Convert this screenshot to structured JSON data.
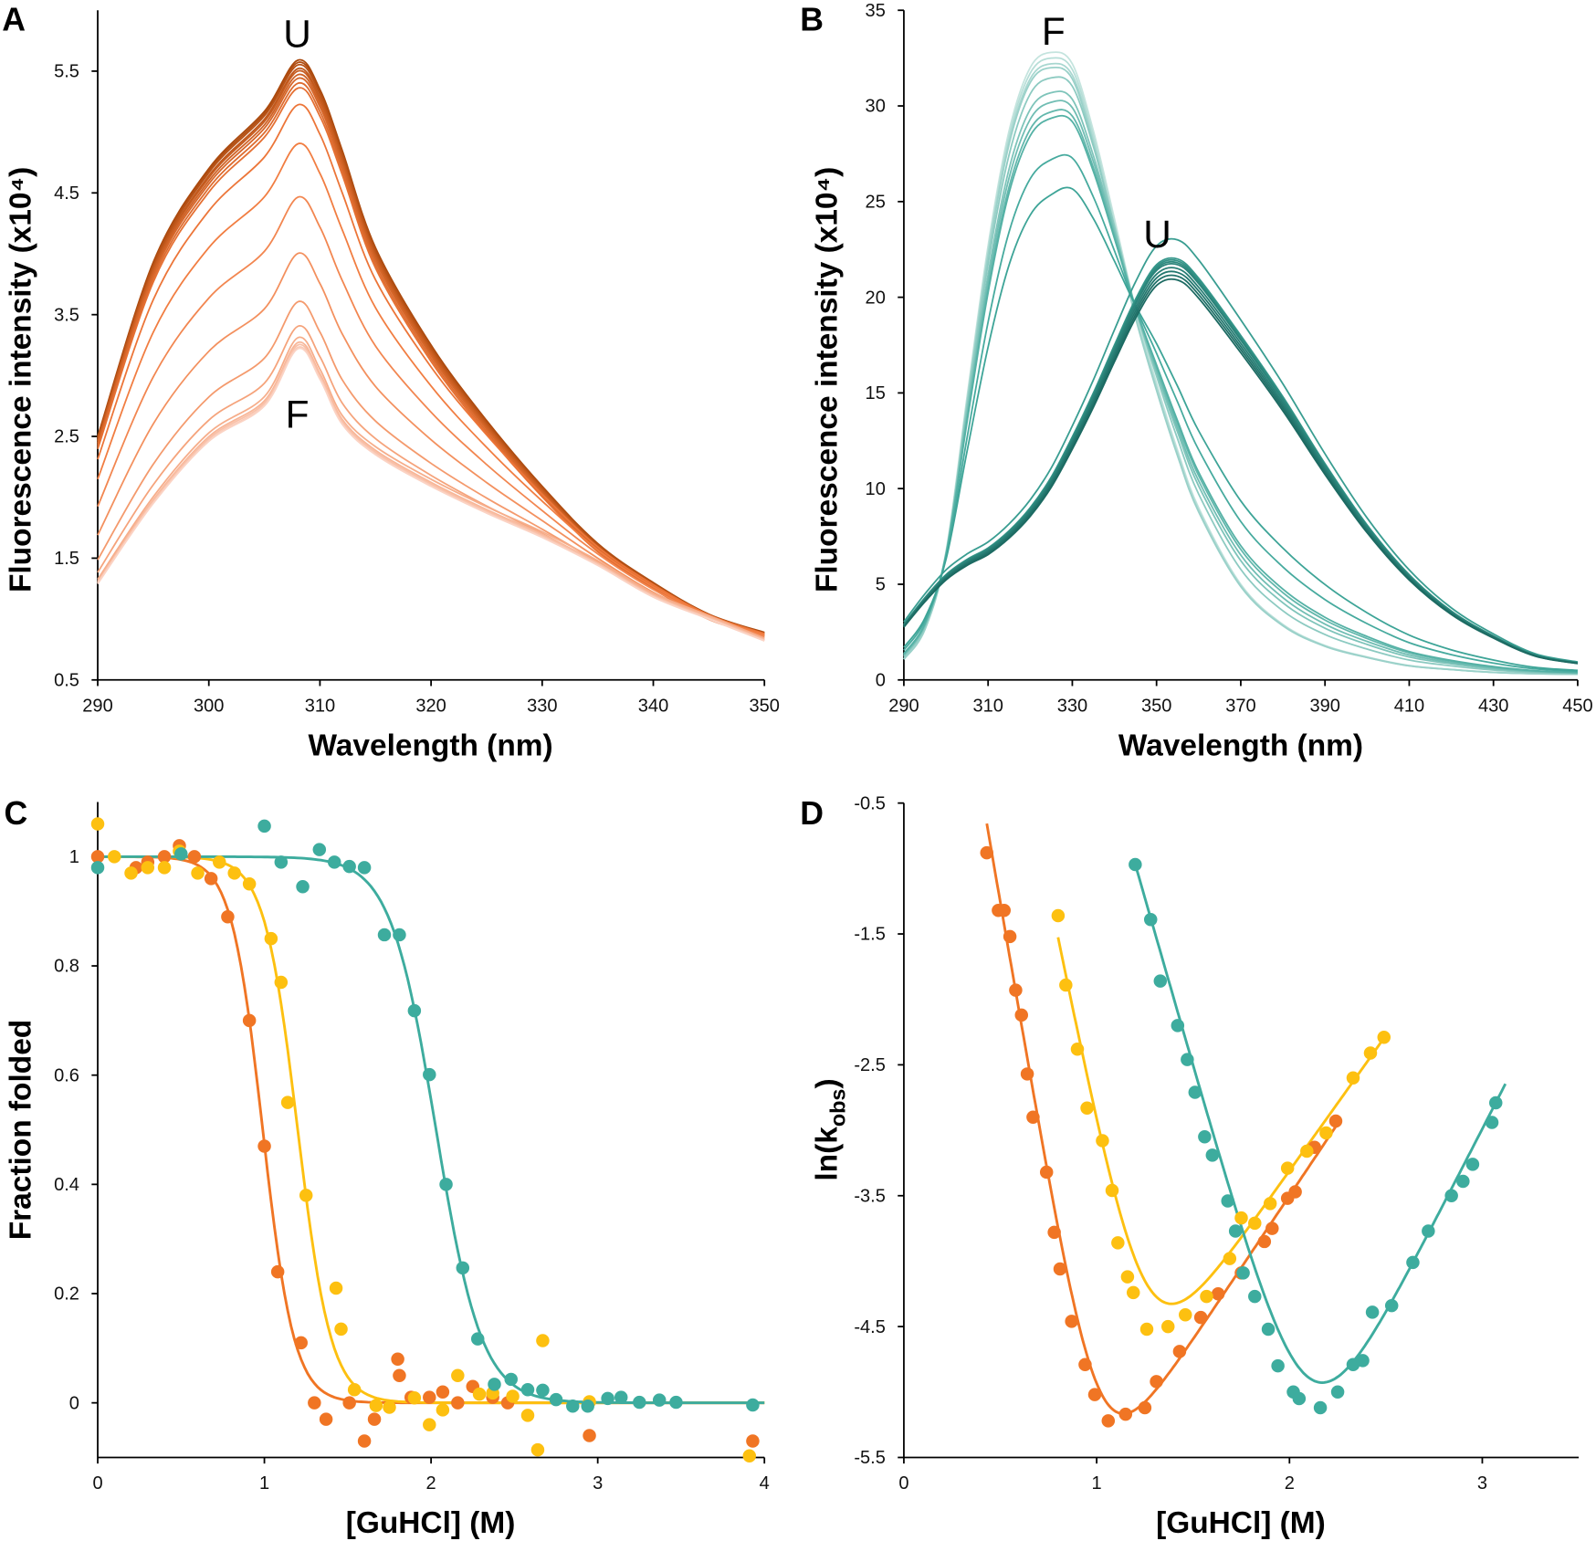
{
  "chart_data": [
    {
      "panel": "A",
      "type": "line",
      "xlabel": "Wavelength (nm)",
      "ylabel": "Fluorescence intensity  (x10⁴)",
      "xlim": [
        290,
        350
      ],
      "ylim": [
        0.5,
        6.0
      ],
      "xticks": [
        290,
        300,
        310,
        320,
        330,
        340,
        350
      ],
      "yticks": [
        0.5,
        1.5,
        2.5,
        3.5,
        4.5,
        5.5
      ],
      "grid": false,
      "annotations": [
        {
          "text": "U"
        },
        {
          "text": "F"
        }
      ],
      "wavelengths": [
        290,
        295,
        300,
        305,
        308,
        310,
        312,
        315,
        320,
        325,
        330,
        335,
        340,
        345,
        350
      ],
      "unfolded_spectrum": [
        2.5,
        3.93,
        4.7,
        5.17,
        5.59,
        5.35,
        4.85,
        4.05,
        3.25,
        2.63,
        2.09,
        1.62,
        1.3,
        1.04,
        0.89
      ],
      "folded_spectrum": [
        1.29,
        1.95,
        2.46,
        2.75,
        3.22,
        2.97,
        2.6,
        2.35,
        2.09,
        1.87,
        1.67,
        1.44,
        1.18,
        1.0,
        0.82
      ],
      "peak_intensities": [
        5.59,
        5.57,
        5.55,
        5.52,
        5.5,
        5.47,
        5.44,
        5.4,
        5.36,
        5.22,
        4.9,
        4.46,
        4.0,
        3.6,
        3.4,
        3.31,
        3.27,
        3.25,
        3.23,
        3.22
      ],
      "colors": [
        "#a9480c",
        "#f0783a",
        "#fbd3c4"
      ]
    },
    {
      "panel": "B",
      "type": "line",
      "xlabel": "Wavelength (nm)",
      "ylabel": "Fluorescence intensity  (x10⁴)",
      "xlim": [
        290,
        450
      ],
      "ylim": [
        0,
        35
      ],
      "xticks": [
        290,
        310,
        330,
        350,
        370,
        390,
        410,
        430,
        450
      ],
      "yticks": [
        0,
        5,
        10,
        15,
        20,
        25,
        30,
        35
      ],
      "grid": false,
      "annotations": [
        {
          "text": "F"
        },
        {
          "text": "U"
        }
      ],
      "wavelengths": [
        290,
        295,
        300,
        305,
        310,
        315,
        320,
        325,
        330,
        335,
        340,
        345,
        350,
        355,
        360,
        370,
        380,
        390,
        400,
        410,
        420,
        430,
        440,
        450
      ],
      "folded_spectrum": [
        1.1,
        2.7,
        6.7,
        14.8,
        22.7,
        28.7,
        32.0,
        32.8,
        32.2,
        28.7,
        24.1,
        19.4,
        15.5,
        12.0,
        9.0,
        5.0,
        2.9,
        1.8,
        1.2,
        0.75,
        0.55,
        0.4,
        0.33,
        0.3
      ],
      "unfolded_spectrum": [
        2.9,
        4.3,
        5.5,
        6.3,
        6.9,
        7.8,
        9.0,
        10.6,
        12.7,
        15.0,
        17.5,
        19.9,
        21.7,
        22.0,
        21.0,
        18.0,
        14.8,
        11.3,
        8.1,
        5.5,
        3.6,
        2.3,
        1.3,
        0.9
      ],
      "peak_intensities": [
        32.8,
        32.5,
        32.2,
        32.0,
        31.5,
        30.7,
        30.2,
        29.7,
        29.4,
        27.3,
        25.7,
        23.0,
        22.0,
        21.9,
        21.8,
        21.7,
        21.5,
        21.3,
        21.1,
        20.9
      ],
      "colors": [
        "#c4e4de",
        "#3fa79a",
        "#1c6a62"
      ]
    },
    {
      "panel": "C",
      "type": "scatter",
      "xlabel": "[GuHCl] (M)",
      "ylabel": "Fraction folded",
      "xlim": [
        0,
        4
      ],
      "ylim": [
        -0.1,
        1.1
      ],
      "xticks": [
        0,
        1,
        2,
        3,
        4
      ],
      "yticks": [
        0,
        0.2,
        0.4,
        0.6,
        0.8,
        1
      ],
      "grid": false,
      "series": [
        {
          "color": "#f07524",
          "fit": {
            "midpoint": 0.99,
            "width": 0.094
          },
          "x": [
            0,
            0.23,
            0.3,
            0.4,
            0.49,
            0.58,
            0.68,
            0.78,
            0.91,
            1.0,
            1.08,
            1.22,
            1.3,
            1.37,
            1.51,
            1.6,
            1.66,
            1.8,
            1.81,
            1.88,
            1.99,
            2.07,
            2.16,
            2.25,
            2.37,
            2.46,
            2.95,
            3.93
          ],
          "y": [
            1.0,
            0.98,
            0.99,
            1.0,
            1.02,
            1.0,
            0.96,
            0.89,
            0.7,
            0.47,
            0.24,
            0.11,
            0.0,
            -0.03,
            0.0,
            -0.07,
            -0.03,
            0.08,
            0.05,
            0.01,
            0.01,
            0.02,
            0.0,
            0.03,
            0.01,
            0.0,
            -0.06,
            -0.07
          ]
        },
        {
          "color": "#fdc010",
          "fit": {
            "midpoint": 1.2,
            "width": 0.1
          },
          "x": [
            0,
            0.1,
            0.2,
            0.3,
            0.4,
            0.49,
            0.6,
            0.73,
            0.82,
            0.91,
            1.04,
            1.1,
            1.14,
            1.25,
            1.43,
            1.46,
            1.54,
            1.67,
            1.75,
            1.9,
            1.99,
            2.07,
            2.16,
            2.29,
            2.37,
            2.49,
            2.58,
            2.64,
            2.67,
            2.95,
            3.91
          ],
          "y": [
            1.06,
            1.0,
            0.97,
            0.98,
            0.98,
            1.01,
            0.97,
            0.99,
            0.97,
            0.95,
            0.85,
            0.77,
            0.55,
            0.38,
            0.21,
            0.135,
            0.024,
            -0.005,
            -0.008,
            0.009,
            -0.04,
            -0.013,
            0.05,
            0.016,
            0.018,
            0.012,
            -0.023,
            -0.086,
            0.114,
            0.002,
            -0.097
          ]
        },
        {
          "color": "#3dac9e",
          "fit": {
            "midpoint": 2.03,
            "width": 0.137
          },
          "x": [
            0,
            0.5,
            1.0,
            1.1,
            1.23,
            1.33,
            1.42,
            1.51,
            1.6,
            1.72,
            1.81,
            1.9,
            1.99,
            2.09,
            2.19,
            2.28,
            2.38,
            2.48,
            2.58,
            2.67,
            2.75,
            2.85,
            2.94,
            3.06,
            3.14,
            3.25,
            3.37,
            3.47,
            3.93
          ],
          "y": [
            0.98,
            1.005,
            1.056,
            0.99,
            0.945,
            1.013,
            0.99,
            0.982,
            0.98,
            0.857,
            0.857,
            0.718,
            0.601,
            0.4,
            0.247,
            0.117,
            0.034,
            0.043,
            0.024,
            0.023,
            0.006,
            -0.006,
            -0.006,
            0.008,
            0.01,
            0.001,
            0.005,
            0.001,
            -0.004
          ]
        }
      ]
    },
    {
      "panel": "D",
      "type": "scatter",
      "xlabel": "[GuHCl] (M)",
      "ylabel_parts": [
        "ln(k",
        "obs",
        ")"
      ],
      "xlim": [
        0,
        3.5
      ],
      "ylim": [
        -5.5,
        -0.5
      ],
      "xticks": [
        0,
        1,
        2,
        3
      ],
      "yticks": [
        -0.5,
        -1.5,
        -2.5,
        -3.5,
        -4.5,
        -5.5
      ],
      "grid": false,
      "series": [
        {
          "color": "#f07524",
          "fit": {
            "range": [
              0.43,
              2.24
            ],
            "ln_kf_intercept": 3.04,
            "mf": -8.6,
            "ln_ku_intercept": -7.9,
            "mu": 2.2
          },
          "x": [
            0.43,
            0.49,
            0.52,
            0.55,
            0.58,
            0.61,
            0.64,
            0.67,
            0.74,
            0.78,
            0.81,
            0.87,
            0.94,
            0.99,
            1.06,
            1.15,
            1.25,
            1.31,
            1.43,
            1.54,
            1.63,
            1.75,
            1.87,
            1.91,
            1.99,
            2.03,
            2.13,
            2.24
          ],
          "y": [
            -0.88,
            -1.32,
            -1.32,
            -1.52,
            -1.93,
            -2.12,
            -2.57,
            -2.9,
            -3.32,
            -3.78,
            -4.06,
            -4.46,
            -4.79,
            -5.02,
            -5.22,
            -5.17,
            -5.12,
            -4.92,
            -4.69,
            -4.43,
            -4.25,
            -4.09,
            -3.85,
            -3.75,
            -3.52,
            -3.47,
            -3.13,
            -2.93
          ]
        },
        {
          "color": "#fdc010",
          "fit": {
            "range": [
              0.8,
              2.49
            ],
            "ln_kf_intercept": 4.3,
            "mf": -7.3,
            "ln_ku_intercept": -7.45,
            "mu": 2.07
          },
          "x": [
            0.8,
            0.84,
            0.9,
            0.95,
            1.03,
            1.08,
            1.11,
            1.16,
            1.19,
            1.26,
            1.37,
            1.46,
            1.57,
            1.69,
            1.75,
            1.82,
            1.9,
            1.99,
            2.09,
            2.19,
            2.33,
            2.42,
            2.49
          ],
          "y": [
            -1.36,
            -1.89,
            -2.38,
            -2.83,
            -3.08,
            -3.46,
            -3.86,
            -4.12,
            -4.24,
            -4.52,
            -4.5,
            -4.41,
            -4.27,
            -3.98,
            -3.67,
            -3.71,
            -3.56,
            -3.29,
            -3.16,
            -3.02,
            -2.6,
            -2.41,
            -2.29
          ]
        },
        {
          "color": "#3dac9e",
          "fit": {
            "range": [
              1.2,
              3.12
            ],
            "ln_kf_intercept": 5.2,
            "mf": -5.14,
            "ln_ku_intercept": -11.6,
            "mu": 2.87
          },
          "x": [
            1.2,
            1.28,
            1.33,
            1.42,
            1.47,
            1.51,
            1.56,
            1.6,
            1.68,
            1.72,
            1.76,
            1.82,
            1.89,
            1.94,
            2.02,
            2.05,
            2.16,
            2.25,
            2.33,
            2.38,
            2.43,
            2.53,
            2.64,
            2.72,
            2.84,
            2.9,
            2.95,
            3.05,
            3.07
          ],
          "y": [
            -0.97,
            -1.39,
            -1.86,
            -2.2,
            -2.46,
            -2.71,
            -3.05,
            -3.19,
            -3.54,
            -3.77,
            -4.09,
            -4.27,
            -4.52,
            -4.8,
            -5.0,
            -5.05,
            -5.12,
            -5.0,
            -4.79,
            -4.76,
            -4.39,
            -4.34,
            -4.01,
            -3.77,
            -3.5,
            -3.39,
            -3.26,
            -2.94,
            -2.79
          ]
        }
      ]
    }
  ]
}
